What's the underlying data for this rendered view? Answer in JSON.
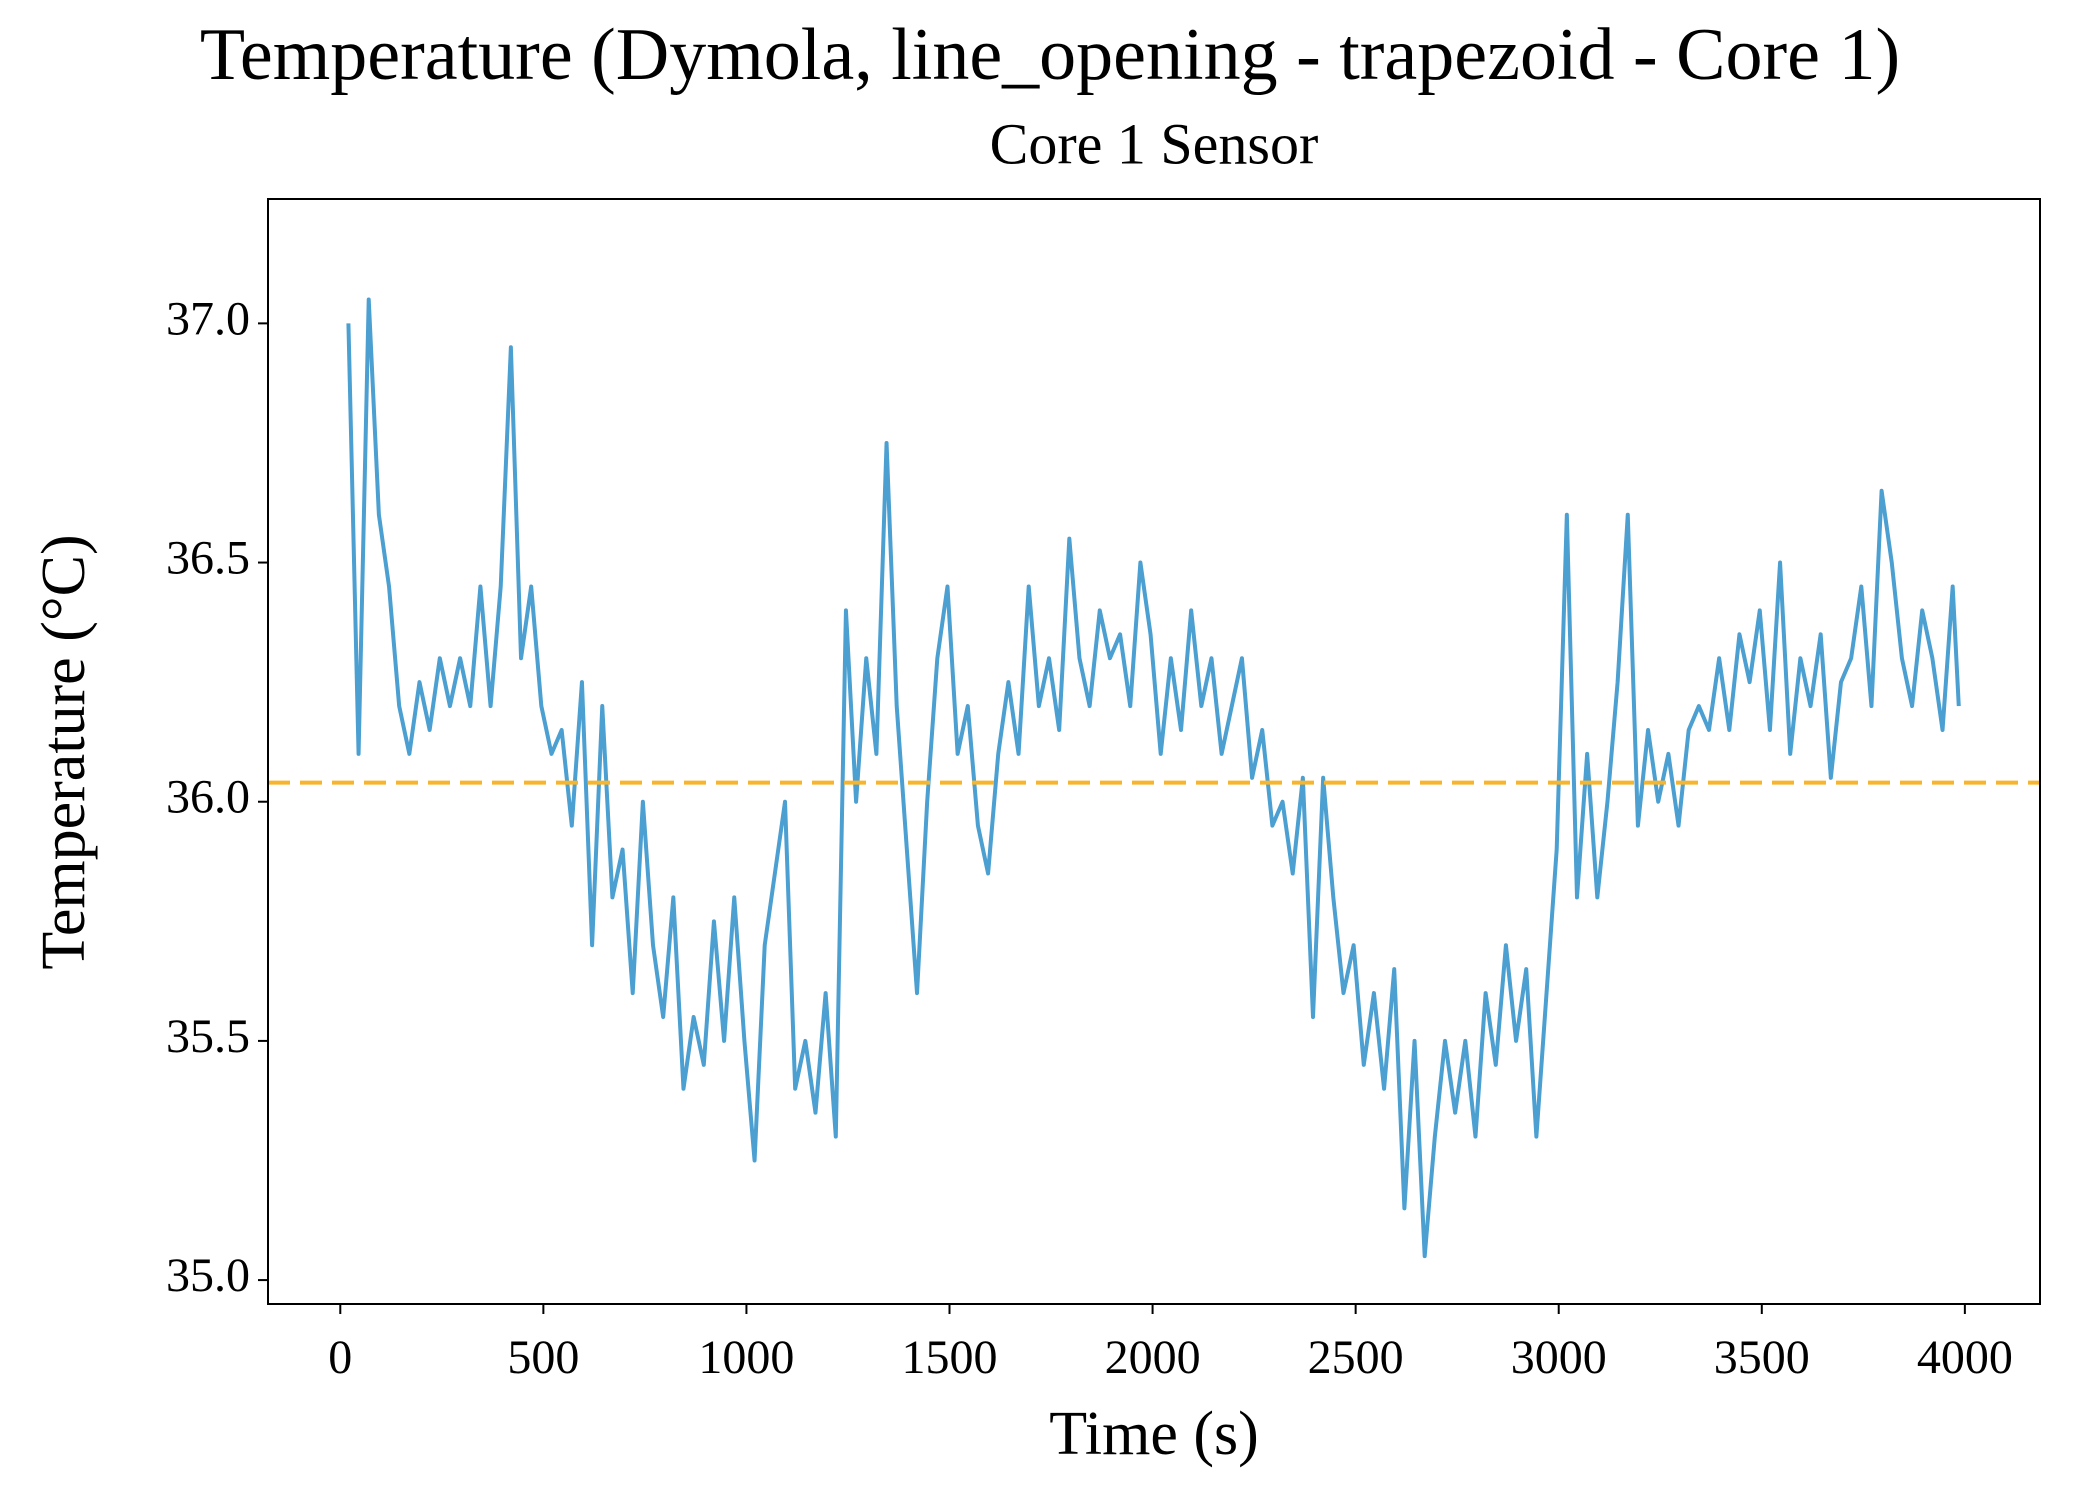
{
  "chart_data": {
    "type": "line",
    "title": "Temperature (Dymola, line_opening - trapezoid - Core 1)",
    "subtitle": "Core 1 Sensor",
    "x_label": "Time (s)",
    "y_label": "Temperature (°C)",
    "x": [
      20,
      45,
      70,
      95,
      120,
      145,
      170,
      195,
      220,
      245,
      270,
      295,
      320,
      345,
      370,
      395,
      420,
      445,
      470,
      495,
      520,
      545,
      570,
      595,
      620,
      645,
      670,
      695,
      720,
      745,
      770,
      795,
      820,
      845,
      870,
      895,
      920,
      945,
      970,
      995,
      1020,
      1045,
      1070,
      1095,
      1120,
      1145,
      1170,
      1195,
      1220,
      1245,
      1270,
      1295,
      1320,
      1345,
      1370,
      1395,
      1420,
      1445,
      1470,
      1495,
      1520,
      1545,
      1570,
      1595,
      1620,
      1645,
      1670,
      1695,
      1720,
      1745,
      1770,
      1795,
      1820,
      1845,
      1870,
      1895,
      1920,
      1945,
      1970,
      1995,
      2020,
      2045,
      2070,
      2095,
      2120,
      2145,
      2170,
      2195,
      2220,
      2245,
      2270,
      2295,
      2320,
      2345,
      2370,
      2395,
      2420,
      2445,
      2470,
      2495,
      2520,
      2545,
      2570,
      2595,
      2620,
      2645,
      2670,
      2695,
      2720,
      2745,
      2770,
      2795,
      2820,
      2845,
      2870,
      2895,
      2920,
      2945,
      2970,
      2995,
      3020,
      3045,
      3070,
      3095,
      3120,
      3145,
      3170,
      3195,
      3220,
      3245,
      3270,
      3295,
      3320,
      3345,
      3370,
      3395,
      3420,
      3445,
      3470,
      3495,
      3520,
      3545,
      3570,
      3595,
      3620,
      3645,
      3670,
      3695,
      3720,
      3745,
      3770,
      3795,
      3820,
      3845,
      3870,
      3895,
      3920,
      3945,
      3970,
      3985
    ],
    "series": [
      {
        "color": "#4b9fd1",
        "values": [
          37.0,
          36.1,
          37.05,
          36.6,
          36.45,
          36.2,
          36.1,
          36.25,
          36.15,
          36.3,
          36.2,
          36.3,
          36.2,
          36.45,
          36.2,
          36.45,
          36.95,
          36.3,
          36.45,
          36.2,
          36.1,
          36.15,
          35.95,
          36.25,
          35.7,
          36.2,
          35.8,
          35.9,
          35.6,
          36.0,
          35.7,
          35.55,
          35.8,
          35.4,
          35.55,
          35.45,
          35.75,
          35.5,
          35.8,
          35.5,
          35.25,
          35.7,
          35.85,
          36.0,
          35.4,
          35.5,
          35.35,
          35.6,
          35.3,
          36.4,
          36.0,
          36.3,
          36.1,
          36.75,
          36.2,
          35.9,
          35.6,
          36.0,
          36.3,
          36.45,
          36.1,
          36.2,
          35.95,
          35.85,
          36.1,
          36.25,
          36.1,
          36.45,
          36.2,
          36.3,
          36.15,
          36.55,
          36.3,
          36.2,
          36.4,
          36.3,
          36.35,
          36.2,
          36.5,
          36.35,
          36.1,
          36.3,
          36.15,
          36.4,
          36.2,
          36.3,
          36.1,
          36.2,
          36.3,
          36.05,
          36.15,
          35.95,
          36.0,
          35.85,
          36.05,
          35.55,
          36.05,
          35.8,
          35.6,
          35.7,
          35.45,
          35.6,
          35.4,
          35.65,
          35.15,
          35.5,
          35.05,
          35.3,
          35.5,
          35.35,
          35.5,
          35.3,
          35.6,
          35.45,
          35.7,
          35.5,
          35.65,
          35.3,
          35.6,
          35.9,
          36.6,
          35.8,
          36.1,
          35.8,
          36.0,
          36.25,
          36.6,
          35.95,
          36.15,
          36.0,
          36.1,
          35.95,
          36.15,
          36.2,
          36.15,
          36.3,
          36.15,
          36.35,
          36.25,
          36.4,
          36.15,
          36.5,
          36.1,
          36.3,
          36.2,
          36.35,
          36.05,
          36.25,
          36.3,
          36.45,
          36.2,
          36.65,
          36.5,
          36.3,
          36.2,
          36.4,
          36.3,
          36.15,
          36.45,
          36.2
        ]
      }
    ],
    "hline": {
      "value": 36.04,
      "color": "#f7b52c"
    },
    "xlim": [
      -178,
      4185
    ],
    "ylim": [
      34.95,
      37.26
    ],
    "xticks": [
      0,
      500,
      1000,
      1500,
      2000,
      2500,
      3000,
      3500,
      4000
    ],
    "yticks": [
      {
        "value": 35,
        "label": "35.0"
      },
      35.5,
      {
        "value": 36,
        "label": "36.0"
      },
      36.5,
      {
        "value": 37,
        "label": "37.0"
      }
    ]
  }
}
